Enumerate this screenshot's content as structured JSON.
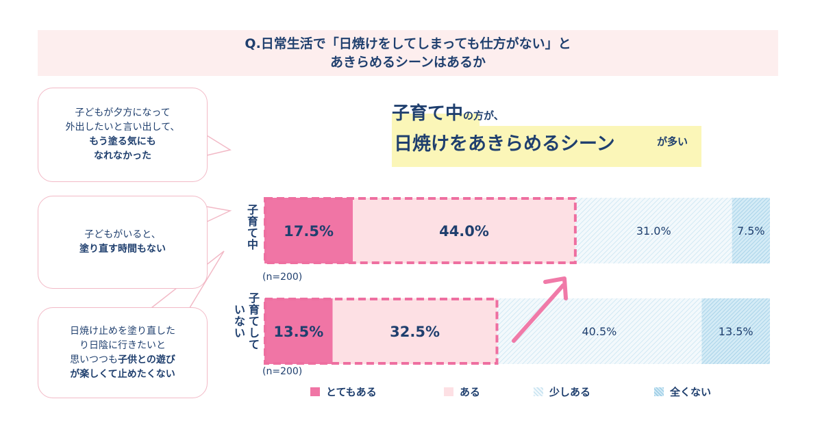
{
  "question": {
    "line1": "Q.日常生活で「日焼けをしてしまっても仕方がない」と",
    "line2": "あきらめるシーンはあるか"
  },
  "bubbles": [
    {
      "lines": [
        "子どもが夕方になって",
        "外出したいと言い出して、"
      ],
      "bold_lines": [
        "もう塗る気にも",
        "なれなかった"
      ]
    },
    {
      "lines": [
        "子どもがいると、"
      ],
      "bold_lines": [
        "塗り直す時間もない"
      ]
    },
    {
      "line1": "日焼け止めを塗り直した",
      "line2": "り日陰に行きたいと",
      "line3_normal": "思いつつも",
      "line3_bold": "子供との遊び",
      "line4": "が楽しくて止めたくない"
    }
  ],
  "headline": {
    "part1_big": "子育て中",
    "part1_small": "の方が、",
    "part2_big": "日焼けをあきらめるシーン",
    "part2_small": "が多い"
  },
  "chart_data": {
    "type": "bar",
    "orientation": "horizontal-stacked-100",
    "categories": [
      "子育て中",
      "子育てしていない"
    ],
    "category_labels": [
      [
        "子",
        "育",
        "て",
        "中"
      ],
      [
        "子",
        "育",
        "て",
        "し",
        "て",
        "い",
        "な",
        "い"
      ]
    ],
    "sample_sizes": [
      "(n=200)",
      "(n=200)"
    ],
    "series": [
      {
        "name": "とてもある",
        "values": [
          17.5,
          13.5
        ],
        "labels": [
          "17.5%",
          "13.5%"
        ],
        "color": "#f075a5"
      },
      {
        "name": "ある",
        "values": [
          44.0,
          32.5
        ],
        "labels": [
          "44.0%",
          "32.5%"
        ],
        "color": "#fde0e4"
      },
      {
        "name": "少しある",
        "values": [
          31.0,
          40.5
        ],
        "labels": [
          "31.0%",
          "40.5%"
        ],
        "color": "#e3f1f8"
      },
      {
        "name": "全くない",
        "values": [
          7.5,
          13.5
        ],
        "labels": [
          "7.5%",
          "13.5%"
        ],
        "color": "#bcdeef"
      }
    ],
    "xlim": [
      0,
      100
    ],
    "highlight_color": "#ee6fa0",
    "legend_position": "bottom"
  }
}
